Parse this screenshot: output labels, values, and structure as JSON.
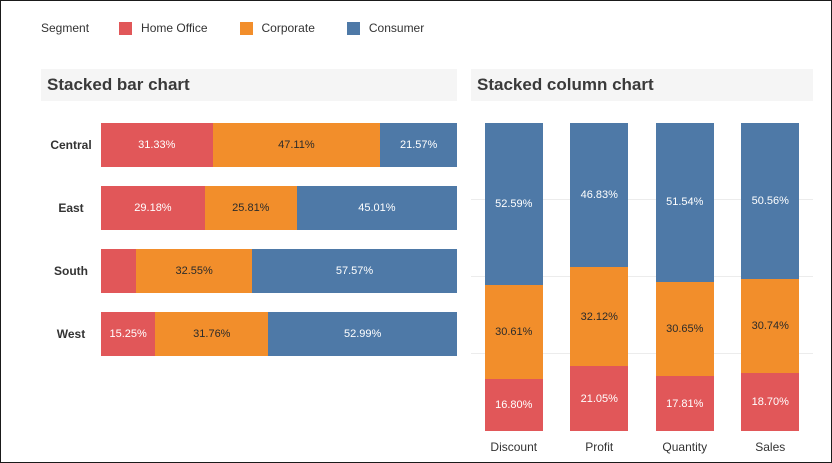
{
  "legend": {
    "title": "Segment",
    "items": [
      {
        "label": "Home Office",
        "color": "#e15759"
      },
      {
        "label": "Corporate",
        "color": "#f28e2b"
      },
      {
        "label": "Consumer",
        "color": "#4e79a7"
      }
    ]
  },
  "chart_data": [
    {
      "type": "bar",
      "orientation": "horizontal",
      "stacked": true,
      "unit": "%",
      "title": "Stacked bar chart",
      "xlim": [
        0,
        100
      ],
      "grid": false,
      "categories": [
        "Central",
        "East",
        "South",
        "West"
      ],
      "series": [
        {
          "name": "Home Office",
          "color": "#e15759",
          "label_color": "#ffffff",
          "values": [
            31.33,
            29.18,
            9.88,
            15.25
          ],
          "labels": [
            "31.33%",
            "29.18%",
            "",
            "15.25%"
          ]
        },
        {
          "name": "Corporate",
          "color": "#f28e2b",
          "label_color": "#2b2b2b",
          "values": [
            47.11,
            25.81,
            32.55,
            31.76
          ],
          "labels": [
            "47.11%",
            "25.81%",
            "32.55%",
            "31.76%"
          ]
        },
        {
          "name": "Consumer",
          "color": "#4e79a7",
          "label_color": "#ffffff",
          "values": [
            21.57,
            45.01,
            57.57,
            52.99
          ],
          "labels": [
            "21.57%",
            "45.01%",
            "57.57%",
            "52.99%"
          ]
        }
      ]
    },
    {
      "type": "bar",
      "orientation": "vertical",
      "stacked": true,
      "unit": "%",
      "title": "Stacked column chart",
      "ylim": [
        0,
        100
      ],
      "grid": true,
      "categories": [
        "Discount",
        "Profit",
        "Quantity",
        "Sales"
      ],
      "series": [
        {
          "name": "Home Office",
          "color": "#e15759",
          "label_color": "#ffffff",
          "values": [
            16.8,
            21.05,
            17.81,
            18.7
          ],
          "labels": [
            "16.80%",
            "21.05%",
            "17.81%",
            "18.70%"
          ]
        },
        {
          "name": "Corporate",
          "color": "#f28e2b",
          "label_color": "#2b2b2b",
          "values": [
            30.61,
            32.12,
            30.65,
            30.74
          ],
          "labels": [
            "30.61%",
            "32.12%",
            "30.65%",
            "30.74%"
          ]
        },
        {
          "name": "Consumer",
          "color": "#4e79a7",
          "label_color": "#ffffff",
          "values": [
            52.59,
            46.83,
            51.54,
            50.56
          ],
          "labels": [
            "52.59%",
            "46.83%",
            "51.54%",
            "50.56%"
          ]
        }
      ]
    }
  ]
}
